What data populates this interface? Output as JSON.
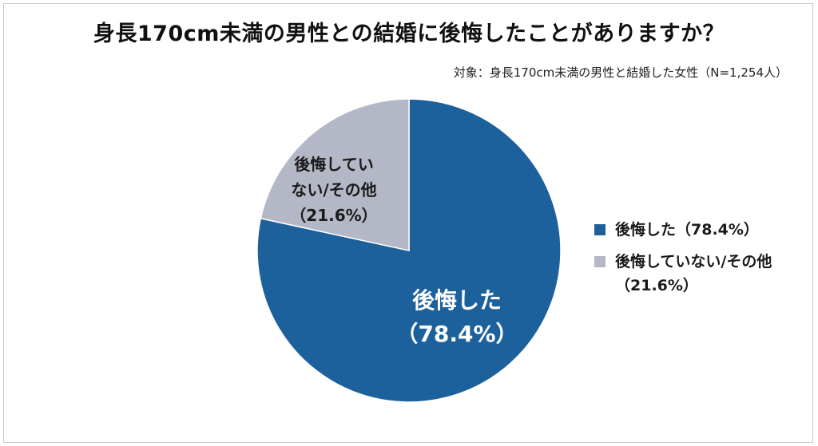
{
  "title": "身長170cm未満の男性との結婚に後悔したことがありますか？",
  "subtitle": "対象：身長170cm未満の男性と結婚した女性（N=1,254人）",
  "chart_data": {
    "type": "pie",
    "title": "身長170cm未満の男性との結婚に後悔したことがありますか？",
    "subtitle": "対象：身長170cm未満の男性と結婚した女性（N=1,254人）",
    "start_angle": "12 o'clock",
    "direction": "clockwise",
    "legend_position": "right",
    "slices": [
      {
        "label": "後悔した",
        "value": 78.4,
        "unit": "%",
        "color": "#1c619c",
        "label_lines": [
          "後悔した",
          "（78.4%）"
        ],
        "legend_lines": [
          "後悔した（78.4%）"
        ]
      },
      {
        "label": "後悔していない/その他",
        "value": 21.6,
        "unit": "%",
        "color": "#b4b8c6",
        "label_lines": [
          "後悔してい",
          "ない/その他",
          "（21.6%）"
        ],
        "legend_lines": [
          "後悔していない/その他",
          "（21.6%）"
        ]
      }
    ]
  }
}
